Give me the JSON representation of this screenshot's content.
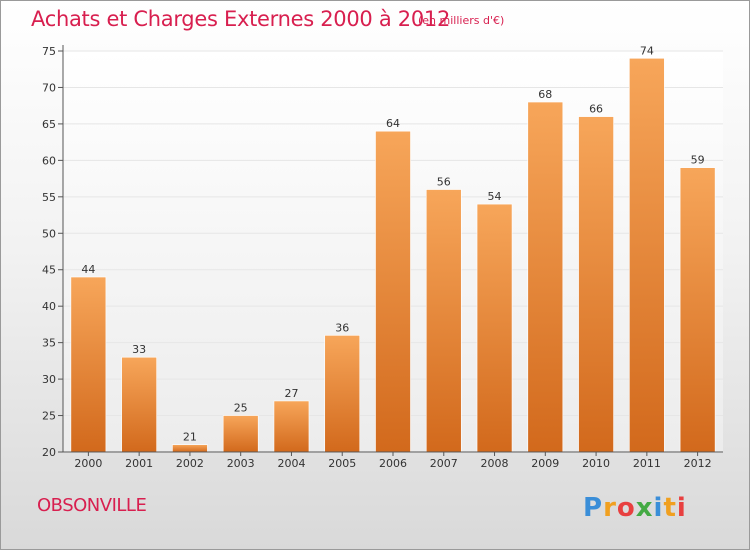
{
  "title": "Achats et Charges Externes 2000 à 2012",
  "subtitle": "(en milliers d'€)",
  "commune": "OBSONVILLE",
  "logo_text": "Proxiti",
  "colors": {
    "title": "#d81f4f",
    "bar_top": "#f7a65a",
    "bar_bottom": "#d2691c",
    "axis": "#555555",
    "grid": "#e6e6e6"
  },
  "chart_data": {
    "type": "bar",
    "title": "Achats et Charges Externes 2000 à 2012",
    "subtitle": "(en milliers d'€)",
    "xlabel": "",
    "ylabel": "",
    "categories": [
      "2000",
      "2001",
      "2002",
      "2003",
      "2004",
      "2005",
      "2006",
      "2007",
      "2008",
      "2009",
      "2010",
      "2011",
      "2012"
    ],
    "values": [
      44,
      33,
      21,
      25,
      27,
      36,
      64,
      56,
      54,
      68,
      66,
      74,
      59
    ],
    "ylim": [
      20,
      75
    ],
    "yticks": [
      20,
      25,
      30,
      35,
      40,
      45,
      50,
      55,
      60,
      65,
      70,
      75
    ],
    "grid": true,
    "legend": false
  }
}
